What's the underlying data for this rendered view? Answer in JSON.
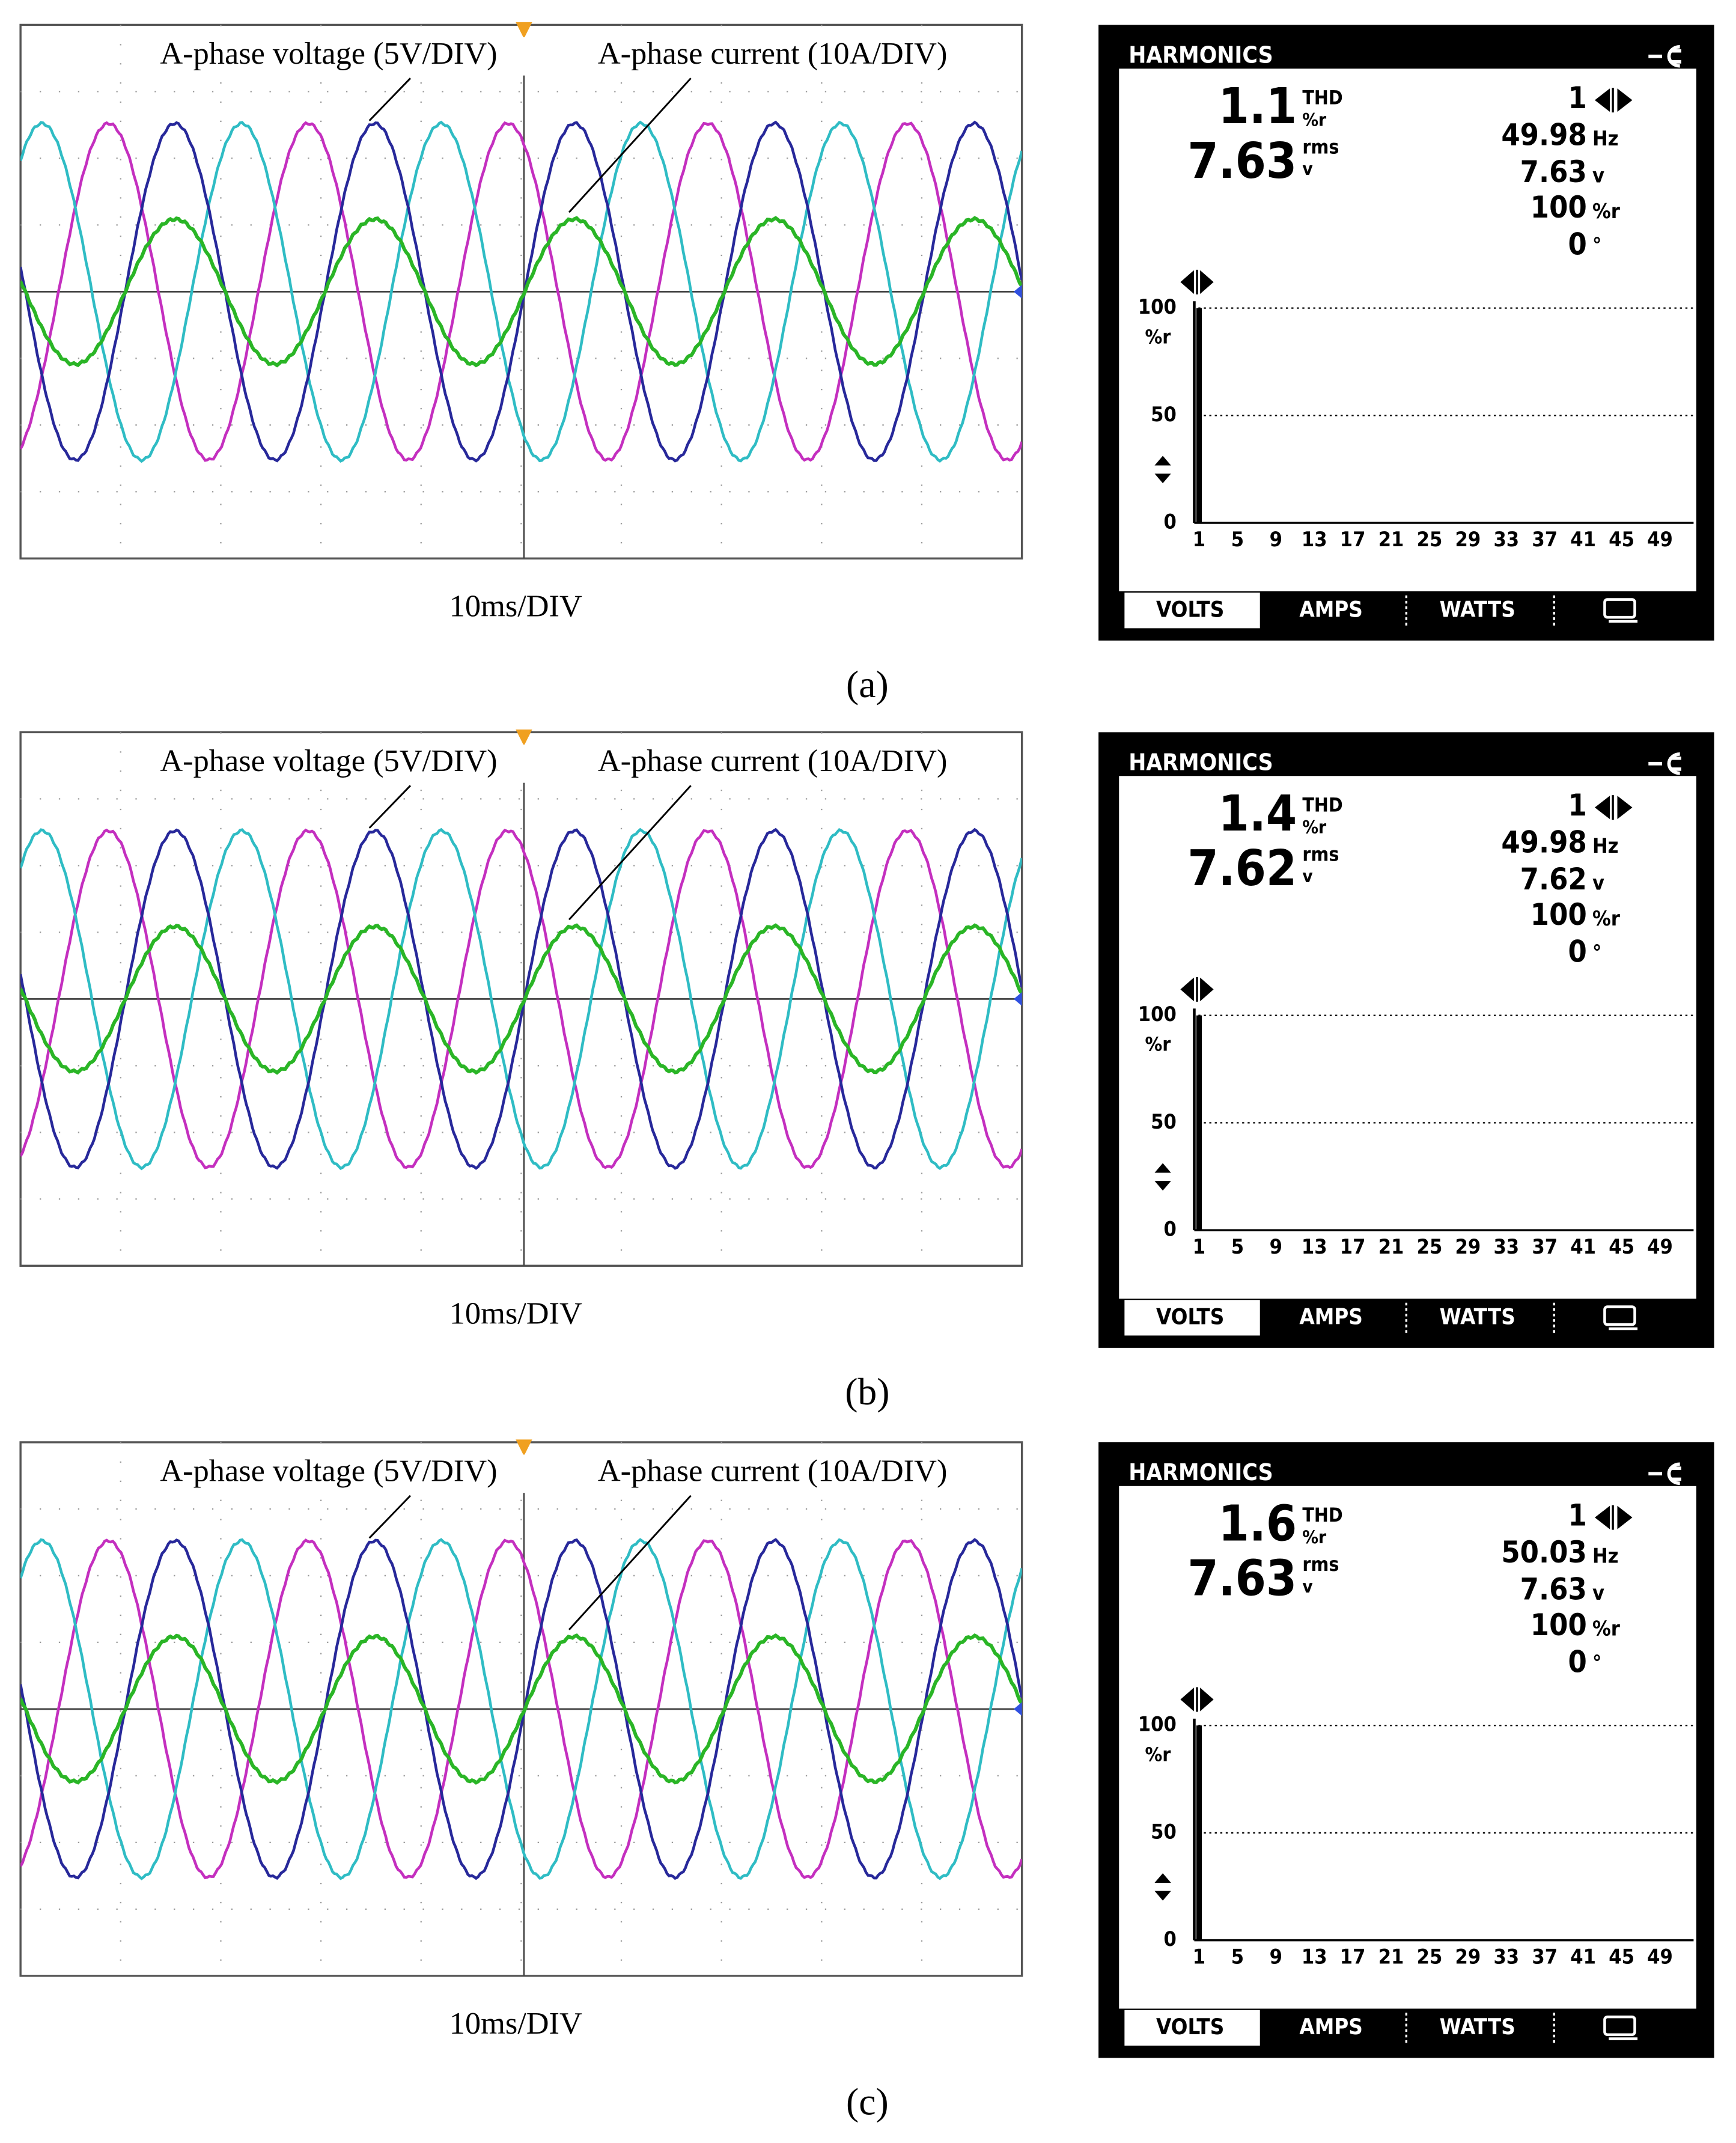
{
  "panels": [
    {
      "caption": "(a)",
      "scope": {
        "voltage_label": "A-phase voltage (5V/DIV)",
        "current_label": "A-phase current (10A/DIV)",
        "timebase": "10ms/DIV"
      },
      "analyzer": {
        "title": "HARMONICS",
        "thd": 1.1,
        "thd_label": "THD",
        "thd_unit": "%r",
        "rms": 7.63,
        "rms_label": "rms",
        "rms_unit": "v",
        "harmonic": 1,
        "frequency": 49.98,
        "frequency_unit": "Hz",
        "voltage": 7.63,
        "voltage_unit": "v",
        "percent": 100,
        "percent_unit": "%r",
        "phase": 0,
        "phase_unit": "°",
        "chart": {
          "type": "bar",
          "x": [
            1
          ],
          "values": [
            100
          ],
          "color": "#000000",
          "ylim": [
            0,
            100
          ],
          "yticks": [
            0,
            50,
            100
          ],
          "y_unit": "%r",
          "grid": true,
          "xlim": [
            0.5,
            52.5
          ],
          "xticks": [
            1,
            5,
            9,
            13,
            17,
            21,
            25,
            29,
            33,
            37,
            41,
            45,
            49
          ]
        },
        "tabs": [
          "VOLTS",
          "AMPS",
          "WATTS"
        ]
      }
    },
    {
      "caption": "(b)",
      "scope": {
        "voltage_label": "A-phase voltage (5V/DIV)",
        "current_label": "A-phase current (10A/DIV)",
        "timebase": "10ms/DIV"
      },
      "analyzer": {
        "title": "HARMONICS",
        "thd": 1.4,
        "thd_label": "THD",
        "thd_unit": "%r",
        "rms": 7.62,
        "rms_label": "rms",
        "rms_unit": "v",
        "harmonic": 1,
        "frequency": 49.98,
        "frequency_unit": "Hz",
        "voltage": 7.62,
        "voltage_unit": "v",
        "percent": 100,
        "percent_unit": "%r",
        "phase": 0,
        "phase_unit": "°",
        "chart": {
          "type": "bar",
          "x": [
            1
          ],
          "values": [
            100
          ],
          "color": "#000000",
          "ylim": [
            0,
            100
          ],
          "yticks": [
            0,
            50,
            100
          ],
          "y_unit": "%r",
          "grid": true,
          "xlim": [
            0.5,
            52.5
          ],
          "xticks": [
            1,
            5,
            9,
            13,
            17,
            21,
            25,
            29,
            33,
            37,
            41,
            45,
            49
          ]
        },
        "tabs": [
          "VOLTS",
          "AMPS",
          "WATTS"
        ]
      }
    },
    {
      "caption": "(c)",
      "scope": {
        "voltage_label": "A-phase voltage (5V/DIV)",
        "current_label": "A-phase current (10A/DIV)",
        "timebase": "10ms/DIV"
      },
      "analyzer": {
        "title": "HARMONICS",
        "thd": 1.6,
        "thd_label": "THD",
        "thd_unit": "%r",
        "rms": 7.63,
        "rms_label": "rms",
        "rms_unit": "v",
        "harmonic": 1,
        "frequency": 50.03,
        "frequency_unit": "Hz",
        "voltage": 7.63,
        "voltage_unit": "v",
        "percent": 100,
        "percent_unit": "%r",
        "phase": 0,
        "phase_unit": "°",
        "chart": {
          "type": "bar",
          "x": [
            1
          ],
          "values": [
            100
          ],
          "color": "#000000",
          "ylim": [
            0,
            100
          ],
          "yticks": [
            0,
            50,
            100
          ],
          "y_unit": "%r",
          "grid": true,
          "xlim": [
            0.5,
            52.5
          ],
          "xticks": [
            1,
            5,
            9,
            13,
            17,
            21,
            25,
            29,
            33,
            37,
            41,
            45,
            49
          ]
        },
        "tabs": [
          "VOLTS",
          "AMPS",
          "WATTS"
        ]
      }
    }
  ]
}
